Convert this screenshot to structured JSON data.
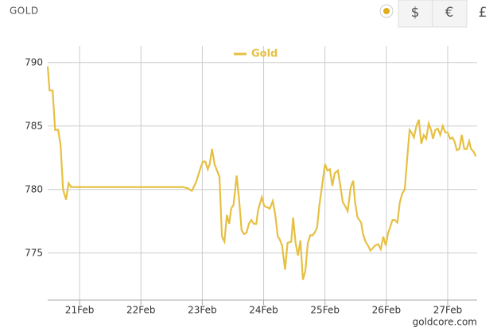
{
  "header": {
    "title": "GOLD",
    "currencies": [
      "$",
      "€",
      "£"
    ]
  },
  "chart_data": {
    "type": "line",
    "credits": "goldcore.com",
    "x": [
      20.48,
      20.51,
      20.56,
      20.6,
      20.65,
      20.69,
      20.73,
      20.78,
      20.82,
      20.86,
      22.68,
      22.76,
      22.83,
      22.9,
      22.97,
      23.01,
      23.05,
      23.09,
      23.12,
      23.16,
      23.2,
      23.24,
      23.28,
      23.32,
      23.36,
      23.4,
      23.44,
      23.47,
      23.51,
      23.56,
      23.6,
      23.64,
      23.68,
      23.72,
      23.76,
      23.8,
      23.84,
      23.88,
      23.91,
      23.97,
      24.01,
      24.06,
      24.1,
      24.15,
      24.19,
      24.23,
      24.26,
      24.3,
      24.35,
      24.39,
      24.45,
      24.48,
      24.52,
      24.56,
      24.6,
      24.64,
      24.68,
      24.72,
      24.76,
      24.8,
      24.83,
      24.87,
      24.91,
      24.95,
      25.0,
      25.04,
      25.08,
      25.12,
      25.16,
      25.21,
      25.25,
      25.29,
      25.33,
      25.37,
      25.42,
      25.46,
      25.49,
      25.53,
      25.59,
      25.62,
      25.66,
      25.7,
      25.74,
      25.78,
      25.82,
      25.87,
      25.91,
      25.95,
      25.99,
      26.03,
      26.06,
      26.1,
      26.14,
      26.18,
      26.22,
      26.26,
      26.3,
      26.34,
      26.38,
      26.41,
      26.45,
      26.49,
      26.53,
      26.57,
      26.61,
      26.65,
      26.69,
      26.73,
      26.76,
      26.8,
      26.84,
      26.88,
      26.92,
      26.96,
      27.0,
      27.04,
      27.08,
      27.11,
      27.15,
      27.19,
      27.23,
      27.27,
      27.31,
      27.35,
      27.38,
      27.42,
      27.46
    ],
    "series": [
      {
        "name": "Gold",
        "color": "#e6c042",
        "values": [
          789.7,
          787.8,
          787.8,
          784.7,
          784.7,
          783.5,
          780.0,
          779.2,
          780.5,
          780.2,
          780.2,
          780.1,
          779.9,
          780.6,
          781.7,
          782.2,
          782.2,
          781.6,
          782.0,
          783.2,
          782.0,
          781.5,
          781.0,
          776.3,
          775.9,
          778.0,
          777.3,
          778.5,
          778.8,
          781.1,
          779.2,
          776.8,
          776.5,
          776.6,
          777.3,
          777.6,
          777.3,
          777.3,
          778.4,
          779.4,
          778.7,
          778.6,
          778.5,
          779.1,
          778.0,
          776.3,
          776.1,
          775.6,
          773.7,
          775.8,
          775.9,
          777.8,
          775.8,
          774.8,
          776.0,
          772.9,
          773.6,
          775.8,
          776.4,
          776.4,
          776.6,
          777.0,
          778.8,
          780.2,
          782.0,
          781.5,
          781.6,
          780.3,
          781.3,
          781.5,
          780.3,
          779.0,
          778.7,
          778.3,
          780.2,
          780.7,
          779.0,
          777.8,
          777.4,
          776.5,
          775.9,
          775.6,
          775.2,
          775.4,
          775.6,
          775.7,
          775.3,
          776.3,
          775.6,
          776.6,
          777.0,
          777.6,
          777.6,
          777.4,
          779.0,
          779.7,
          780.0,
          782.5,
          784.7,
          784.5,
          784.1,
          785.0,
          785.5,
          783.6,
          784.3,
          784.0,
          785.2,
          784.7,
          784.0,
          784.7,
          784.8,
          784.3,
          785.0,
          784.5,
          784.5,
          784.0,
          784.1,
          783.8,
          783.1,
          783.2,
          784.3,
          783.2,
          783.2,
          783.8,
          783.2,
          783.0,
          782.6
        ]
      }
    ],
    "xlim": [
      20.48,
      27.48
    ],
    "xticks": [
      {
        "value": 21,
        "label": "21Feb"
      },
      {
        "value": 22,
        "label": "22Feb"
      },
      {
        "value": 23,
        "label": "23Feb"
      },
      {
        "value": 24,
        "label": "24Feb"
      },
      {
        "value": 25,
        "label": "25Feb"
      },
      {
        "value": 26,
        "label": "26Feb"
      },
      {
        "value": 27,
        "label": "27Feb"
      }
    ],
    "ylim": [
      771.3,
      791.3
    ],
    "yticks": [
      775,
      780,
      785,
      790
    ],
    "grid": true,
    "legend": "top"
  }
}
